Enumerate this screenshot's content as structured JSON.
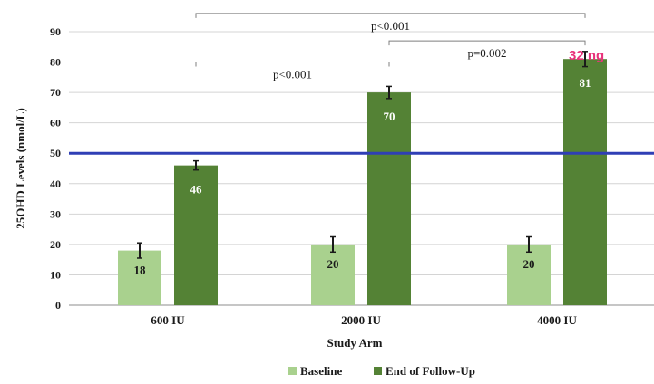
{
  "chart_data": {
    "type": "bar",
    "title": "",
    "xlabel": "Study Arm",
    "ylabel": "25OHD Levels (nmol/L)",
    "ylim": [
      0,
      90
    ],
    "yticks": [
      0,
      10,
      20,
      30,
      40,
      50,
      60,
      70,
      80,
      90
    ],
    "grid": true,
    "categories": [
      "600 IU",
      "2000 IU",
      "4000 IU"
    ],
    "series": [
      {
        "name": "Baseline",
        "color": "#a9d18e",
        "values": [
          18,
          20,
          20
        ],
        "labels": [
          "18",
          "20",
          "20"
        ],
        "errors": [
          2.5,
          2.5,
          2.5
        ]
      },
      {
        "name": "End of Follow-Up",
        "color": "#548235",
        "values": [
          46,
          70,
          81
        ],
        "labels": [
          "46",
          "70",
          "81"
        ],
        "errors": [
          1.5,
          2,
          2.5
        ]
      }
    ],
    "reference_line": {
      "value": 50,
      "color": "#2f3fb5"
    },
    "comparisons": [
      {
        "from": "600 IU",
        "to": "2000 IU",
        "label": "p<0.001",
        "level": 80
      },
      {
        "from": "2000 IU",
        "to": "4000 IU",
        "label": "p=0.002",
        "level": 87
      },
      {
        "from": "600 IU",
        "to": "4000 IU",
        "label": "p<0.001",
        "level": 96
      }
    ],
    "annotation": {
      "text": "32 ng",
      "color": "#e8337a"
    },
    "legend_position": "bottom"
  }
}
